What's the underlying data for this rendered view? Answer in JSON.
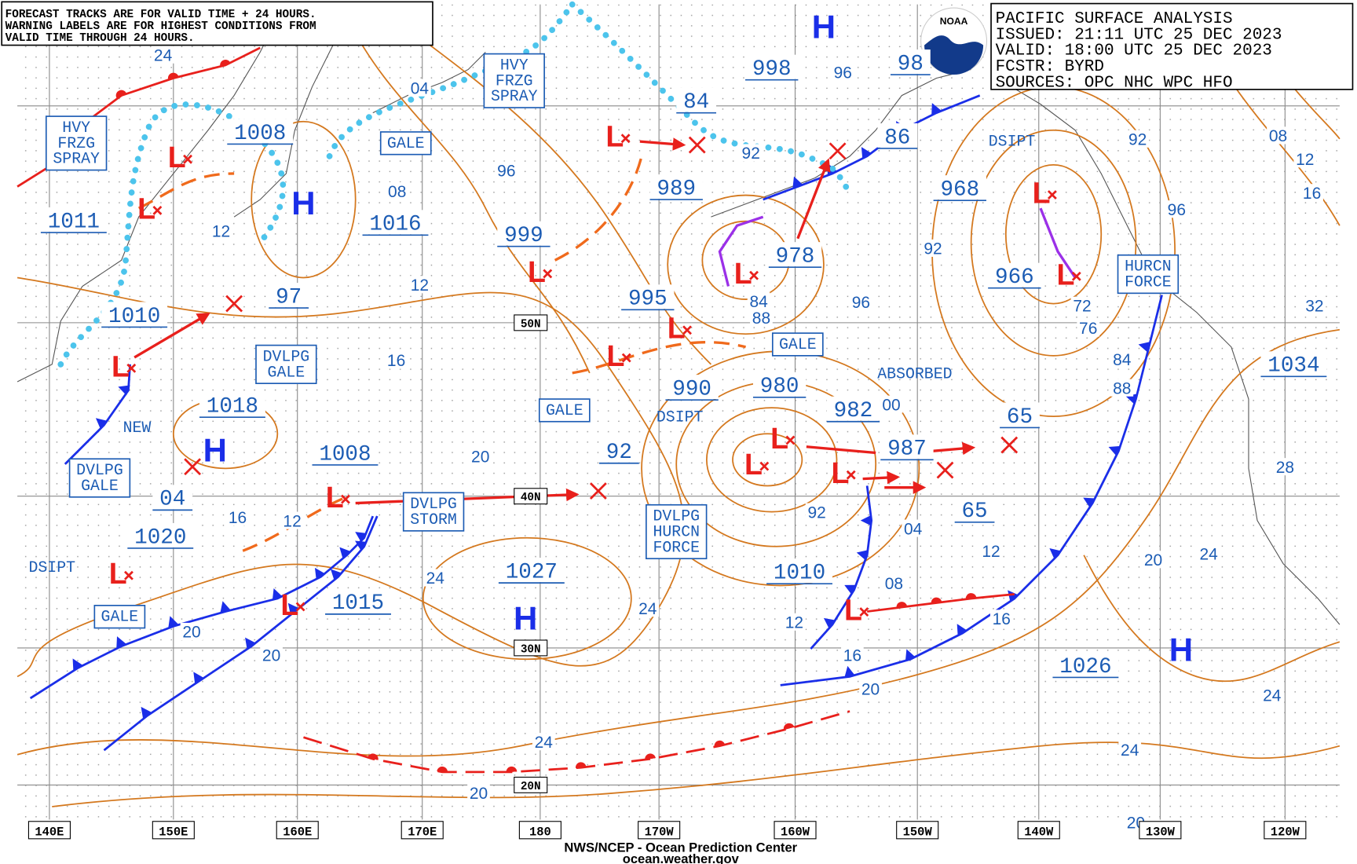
{
  "notice": [
    "FORECAST TRACKS ARE FOR VALID TIME + 24 HOURS.",
    "WARNING LABELS ARE FOR HIGHEST CONDITIONS FROM",
    "VALID TIME THROUGH 24 HOURS."
  ],
  "info": [
    "PACIFIC SURFACE ANALYSIS",
    "ISSUED: 21:11 UTC 25 DEC 2023",
    "VALID:  18:00 UTC 25 DEC 2023",
    "FCSTR:  BYRD",
    "SOURCES:  OPC NHC WPC HFO"
  ],
  "logo": "NOAA",
  "high_symbol": "H",
  "low_symbol": "L",
  "pressure_labels": [
    "1008",
    "1011",
    "1010",
    "1018",
    "1020",
    "1008",
    "1015",
    "1016",
    "999",
    "995",
    "990",
    "1027",
    "989",
    "998",
    "84",
    "978",
    "980",
    "982",
    "987",
    "92",
    "65",
    "65",
    "1010",
    "968",
    "966",
    "1026",
    "1034",
    "98",
    "86",
    "97",
    "04"
  ],
  "warnings": [
    {
      "lines": [
        "HVY",
        "FRZG",
        "SPRAY"
      ]
    },
    {
      "lines": [
        "HVY",
        "FRZG",
        "SPRAY"
      ]
    },
    {
      "lines": [
        "GALE"
      ]
    },
    {
      "lines": [
        "DVLPG",
        "GALE"
      ]
    },
    {
      "lines": [
        "DVLPG",
        "GALE"
      ]
    },
    {
      "lines": [
        "GALE"
      ]
    },
    {
      "lines": [
        "DVLPG",
        "STORM"
      ]
    },
    {
      "lines": [
        "DVLPG",
        "HURCN",
        "FORCE"
      ]
    },
    {
      "lines": [
        "GALE"
      ]
    },
    {
      "lines": [
        "GALE"
      ]
    },
    {
      "lines": [
        "HURCN",
        "FORCE"
      ]
    }
  ],
  "plain_labels": [
    "DSIPT",
    "DSIPT",
    "DSIPT",
    "NEW",
    "ABSORBED"
  ],
  "isobar_labels": [
    "24",
    "04",
    "12",
    "08",
    "96",
    "92",
    "96",
    "12",
    "16",
    "88",
    "84",
    "96",
    "92",
    "72",
    "76",
    "84",
    "88",
    "00",
    "20",
    "16",
    "12",
    "24",
    "92",
    "04",
    "12",
    "08",
    "16",
    "12",
    "16",
    "20",
    "20",
    "20",
    "24",
    "24",
    "20",
    "20",
    "24",
    "24",
    "24",
    "20",
    "28",
    "32",
    "16",
    "12",
    "08",
    "92",
    "96"
  ],
  "longitudes": [
    "140E",
    "150E",
    "160E",
    "170E",
    "180",
    "170W",
    "160W",
    "150W",
    "140W",
    "130W",
    "120W"
  ],
  "latitudes": [
    "50N",
    "40N",
    "30N",
    "20N"
  ],
  "footer": [
    "NWS/NCEP - Ocean Prediction Center",
    "ocean.weather.gov"
  ]
}
